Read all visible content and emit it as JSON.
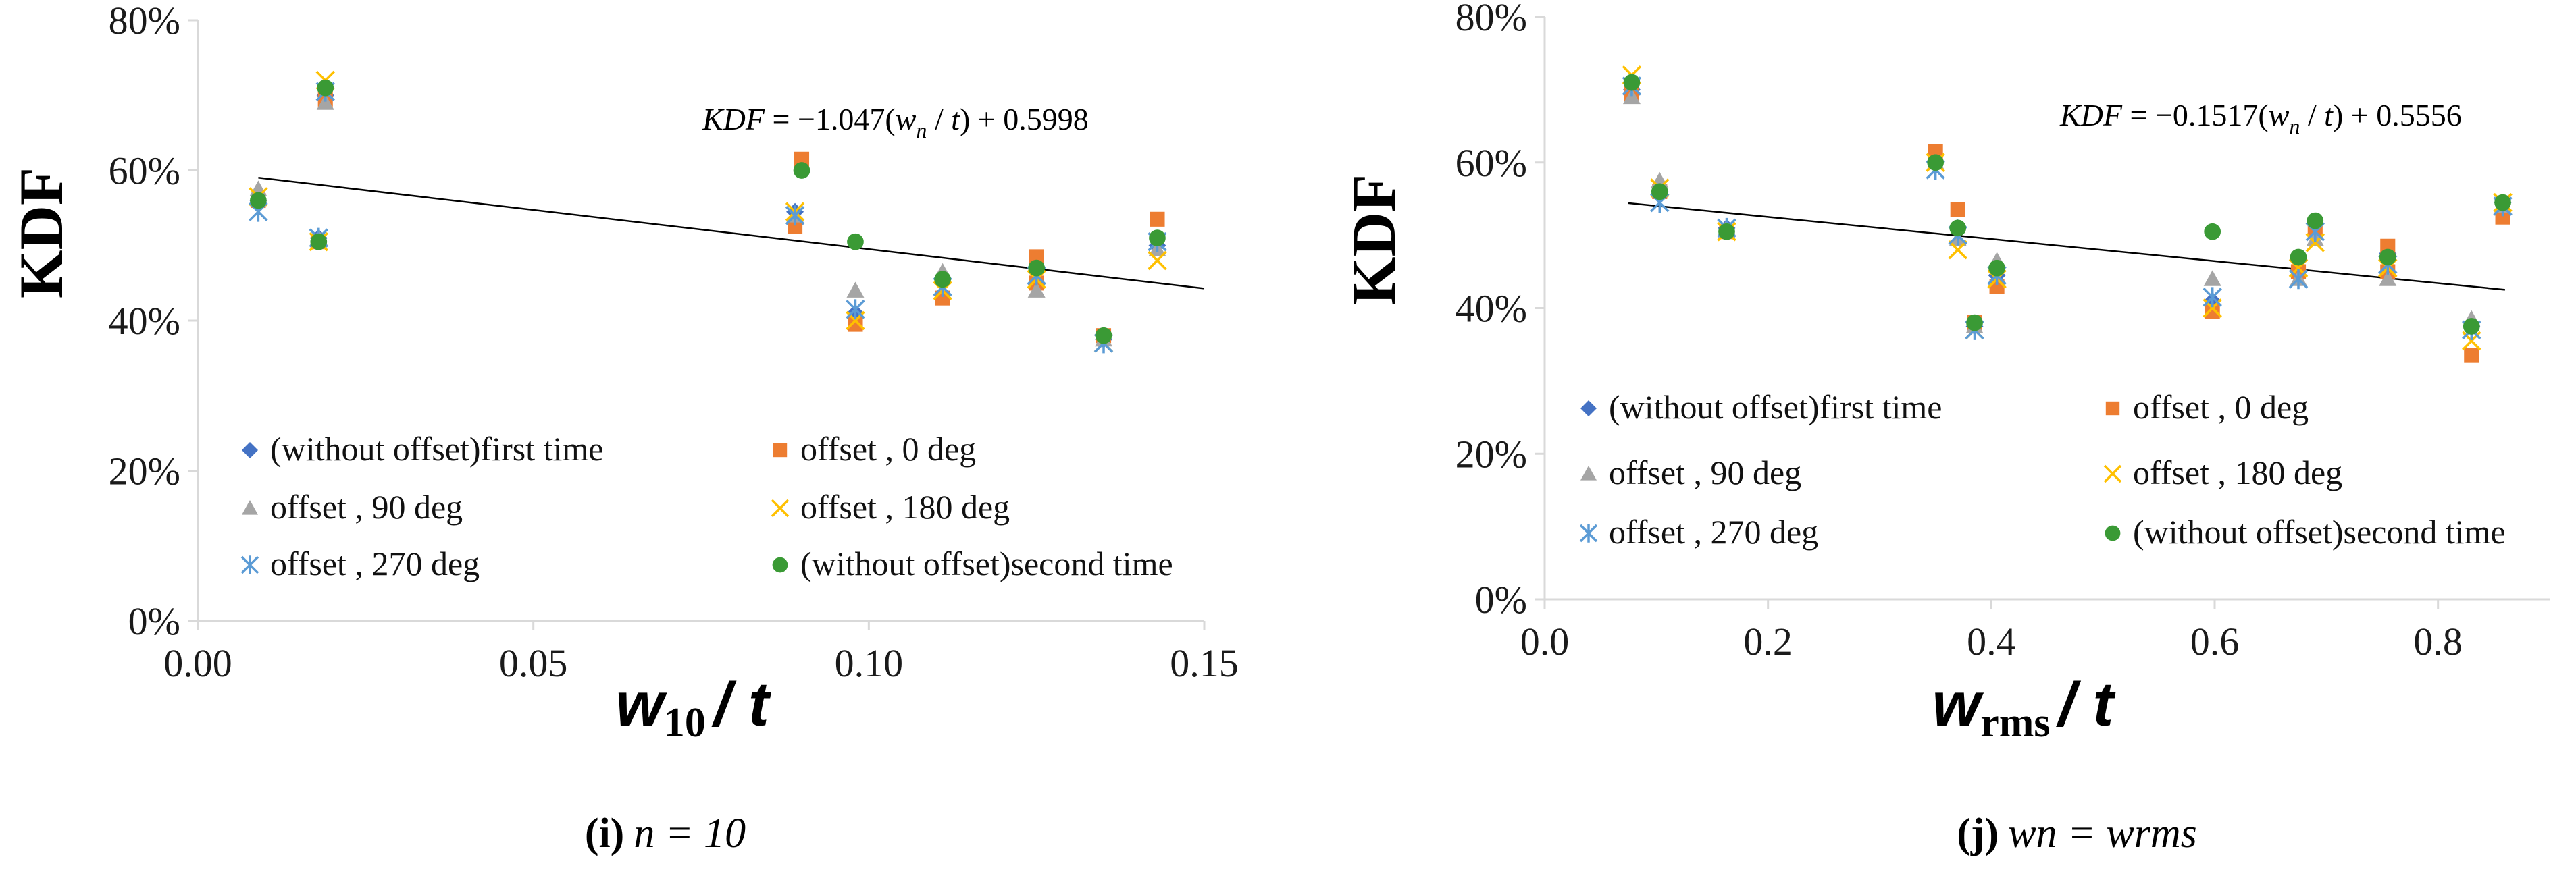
{
  "colors": {
    "without_first": "#4472C4",
    "offset_0": "#ED7D31",
    "offset_90": "#A5A5A5",
    "offset_180": "#FFC000",
    "offset_270": "#5B9BD5",
    "without_second": "#3A9A35",
    "trend": "#000000",
    "axis": "#d9d9d9"
  },
  "legend": [
    {
      "label": "(without offset)first time",
      "marker": "diamond",
      "color_key": "without_first"
    },
    {
      "label": "offset , 0 deg",
      "marker": "square",
      "color_key": "offset_0"
    },
    {
      "label": "offset , 90 deg",
      "marker": "triangle",
      "color_key": "offset_90"
    },
    {
      "label": "offset , 180 deg",
      "marker": "x",
      "color_key": "offset_180"
    },
    {
      "label": "offset , 270 deg",
      "marker": "star",
      "color_key": "offset_270"
    },
    {
      "label": "(without offset)second time",
      "marker": "circle",
      "color_key": "without_second"
    }
  ],
  "chart_data": [
    {
      "type": "scatter",
      "caption_letter": "(i)",
      "caption_rest": "n = 10",
      "ylabel": "KDF",
      "xlabel_main": "w",
      "xlabel_sub": "10",
      "xlabel_tail": "/ t",
      "xlim": [
        0.0,
        0.15
      ],
      "ylim": [
        0,
        0.8
      ],
      "xticks": [
        "0.00",
        "0.05",
        "0.10",
        "0.15"
      ],
      "xtick_values": [
        0.0,
        0.05,
        0.1,
        0.15
      ],
      "yticks": [
        "0%",
        "20%",
        "40%",
        "60%",
        "80%"
      ],
      "ytick_values": [
        0,
        0.2,
        0.4,
        0.6,
        0.8
      ],
      "equation": "KDF = −1.047(w_n / t) + 0.5998",
      "trend": {
        "slope": -1.047,
        "intercept": 0.5998,
        "x_range": [
          0.009,
          0.15
        ]
      },
      "series": [
        {
          "name": "(without offset)first time",
          "x": [
            0.009,
            0.018,
            0.019,
            0.089,
            0.098,
            0.111,
            0.125,
            0.135,
            0.143
          ],
          "y": [
            0.56,
            0.51,
            0.7,
            0.545,
            0.41,
            0.455,
            0.465,
            0.375,
            0.5
          ]
        },
        {
          "name": "offset , 0 deg",
          "x": [
            0.009,
            0.018,
            0.019,
            0.089,
            0.09,
            0.098,
            0.111,
            0.125,
            0.125,
            0.135,
            0.143
          ],
          "y": [
            0.56,
            0.505,
            0.695,
            0.525,
            0.615,
            0.395,
            0.43,
            0.45,
            0.485,
            0.38,
            0.535
          ]
        },
        {
          "name": "offset , 90 deg",
          "x": [
            0.009,
            0.018,
            0.019,
            0.089,
            0.098,
            0.111,
            0.125,
            0.135,
            0.143
          ],
          "y": [
            0.575,
            0.51,
            0.69,
            0.54,
            0.44,
            0.465,
            0.44,
            0.375,
            0.495
          ]
        },
        {
          "name": "offset , 180 deg",
          "x": [
            0.009,
            0.018,
            0.019,
            0.089,
            0.098,
            0.111,
            0.125,
            0.135,
            0.143
          ],
          "y": [
            0.565,
            0.505,
            0.72,
            0.545,
            0.4,
            0.44,
            0.455,
            0.37,
            0.48
          ]
        },
        {
          "name": "offset , 270 deg",
          "x": [
            0.009,
            0.018,
            0.019,
            0.089,
            0.098,
            0.111,
            0.125,
            0.135,
            0.143
          ],
          "y": [
            0.545,
            0.51,
            0.705,
            0.54,
            0.415,
            0.445,
            0.46,
            0.37,
            0.505
          ]
        },
        {
          "name": "(without offset)second time",
          "x": [
            0.009,
            0.018,
            0.019,
            0.09,
            0.098,
            0.111,
            0.125,
            0.135,
            0.143
          ],
          "y": [
            0.56,
            0.505,
            0.71,
            0.6,
            0.505,
            0.455,
            0.47,
            0.38,
            0.51
          ]
        }
      ]
    },
    {
      "type": "scatter",
      "caption_letter": "(j)",
      "caption_rest": "wn = wrms",
      "ylabel": "KDF",
      "xlabel_main": "w",
      "xlabel_sub": "rms",
      "xlabel_tail": "/ t",
      "xlim": [
        0.0,
        0.9
      ],
      "ylim": [
        0,
        0.8
      ],
      "xticks": [
        "0.0",
        "0.2",
        "0.4",
        "0.6",
        "0.8"
      ],
      "xtick_values": [
        0.0,
        0.2,
        0.4,
        0.6,
        0.8
      ],
      "yticks": [
        "0%",
        "20%",
        "40%",
        "60%",
        "80%"
      ],
      "ytick_values": [
        0,
        0.2,
        0.4,
        0.6,
        0.8
      ],
      "equation": "KDF = −0.1517(w_n / t) + 0.5556",
      "trend": {
        "slope": -0.1517,
        "intercept": 0.5556,
        "x_range": [
          0.075,
          0.86
        ]
      },
      "series": [
        {
          "name": "(without offset)first time",
          "x": [
            0.078,
            0.103,
            0.163,
            0.35,
            0.37,
            0.385,
            0.405,
            0.598,
            0.675,
            0.69,
            0.755,
            0.83,
            0.858
          ],
          "y": [
            0.7,
            0.56,
            0.51,
            0.6,
            0.51,
            0.375,
            0.445,
            0.41,
            0.465,
            0.5,
            0.475,
            0.375,
            0.545
          ]
        },
        {
          "name": "offset , 0 deg",
          "x": [
            0.078,
            0.103,
            0.163,
            0.35,
            0.37,
            0.385,
            0.405,
            0.598,
            0.675,
            0.69,
            0.755,
            0.755,
            0.83,
            0.858
          ],
          "y": [
            0.695,
            0.56,
            0.505,
            0.615,
            0.535,
            0.38,
            0.43,
            0.395,
            0.45,
            0.505,
            0.45,
            0.485,
            0.335,
            0.525
          ]
        },
        {
          "name": "offset , 90 deg",
          "x": [
            0.078,
            0.103,
            0.163,
            0.35,
            0.37,
            0.385,
            0.405,
            0.598,
            0.675,
            0.69,
            0.755,
            0.83,
            0.858
          ],
          "y": [
            0.69,
            0.575,
            0.51,
            0.6,
            0.495,
            0.375,
            0.465,
            0.44,
            0.44,
            0.495,
            0.44,
            0.385,
            0.54
          ]
        },
        {
          "name": "offset , 180 deg",
          "x": [
            0.078,
            0.103,
            0.163,
            0.35,
            0.37,
            0.385,
            0.405,
            0.598,
            0.675,
            0.69,
            0.755,
            0.83,
            0.858
          ],
          "y": [
            0.72,
            0.565,
            0.505,
            0.6,
            0.48,
            0.37,
            0.44,
            0.4,
            0.455,
            0.49,
            0.455,
            0.355,
            0.545
          ]
        },
        {
          "name": "offset , 270 deg",
          "x": [
            0.078,
            0.103,
            0.163,
            0.35,
            0.37,
            0.385,
            0.405,
            0.598,
            0.675,
            0.69,
            0.755,
            0.83,
            0.858
          ],
          "y": [
            0.705,
            0.545,
            0.51,
            0.59,
            0.5,
            0.37,
            0.445,
            0.415,
            0.44,
            0.505,
            0.46,
            0.37,
            0.54
          ]
        },
        {
          "name": "(without offset)second time",
          "x": [
            0.078,
            0.103,
            0.163,
            0.35,
            0.37,
            0.385,
            0.405,
            0.598,
            0.675,
            0.69,
            0.755,
            0.83,
            0.858
          ],
          "y": [
            0.71,
            0.56,
            0.505,
            0.6,
            0.51,
            0.38,
            0.455,
            0.505,
            0.47,
            0.52,
            0.47,
            0.375,
            0.545
          ]
        }
      ]
    }
  ]
}
